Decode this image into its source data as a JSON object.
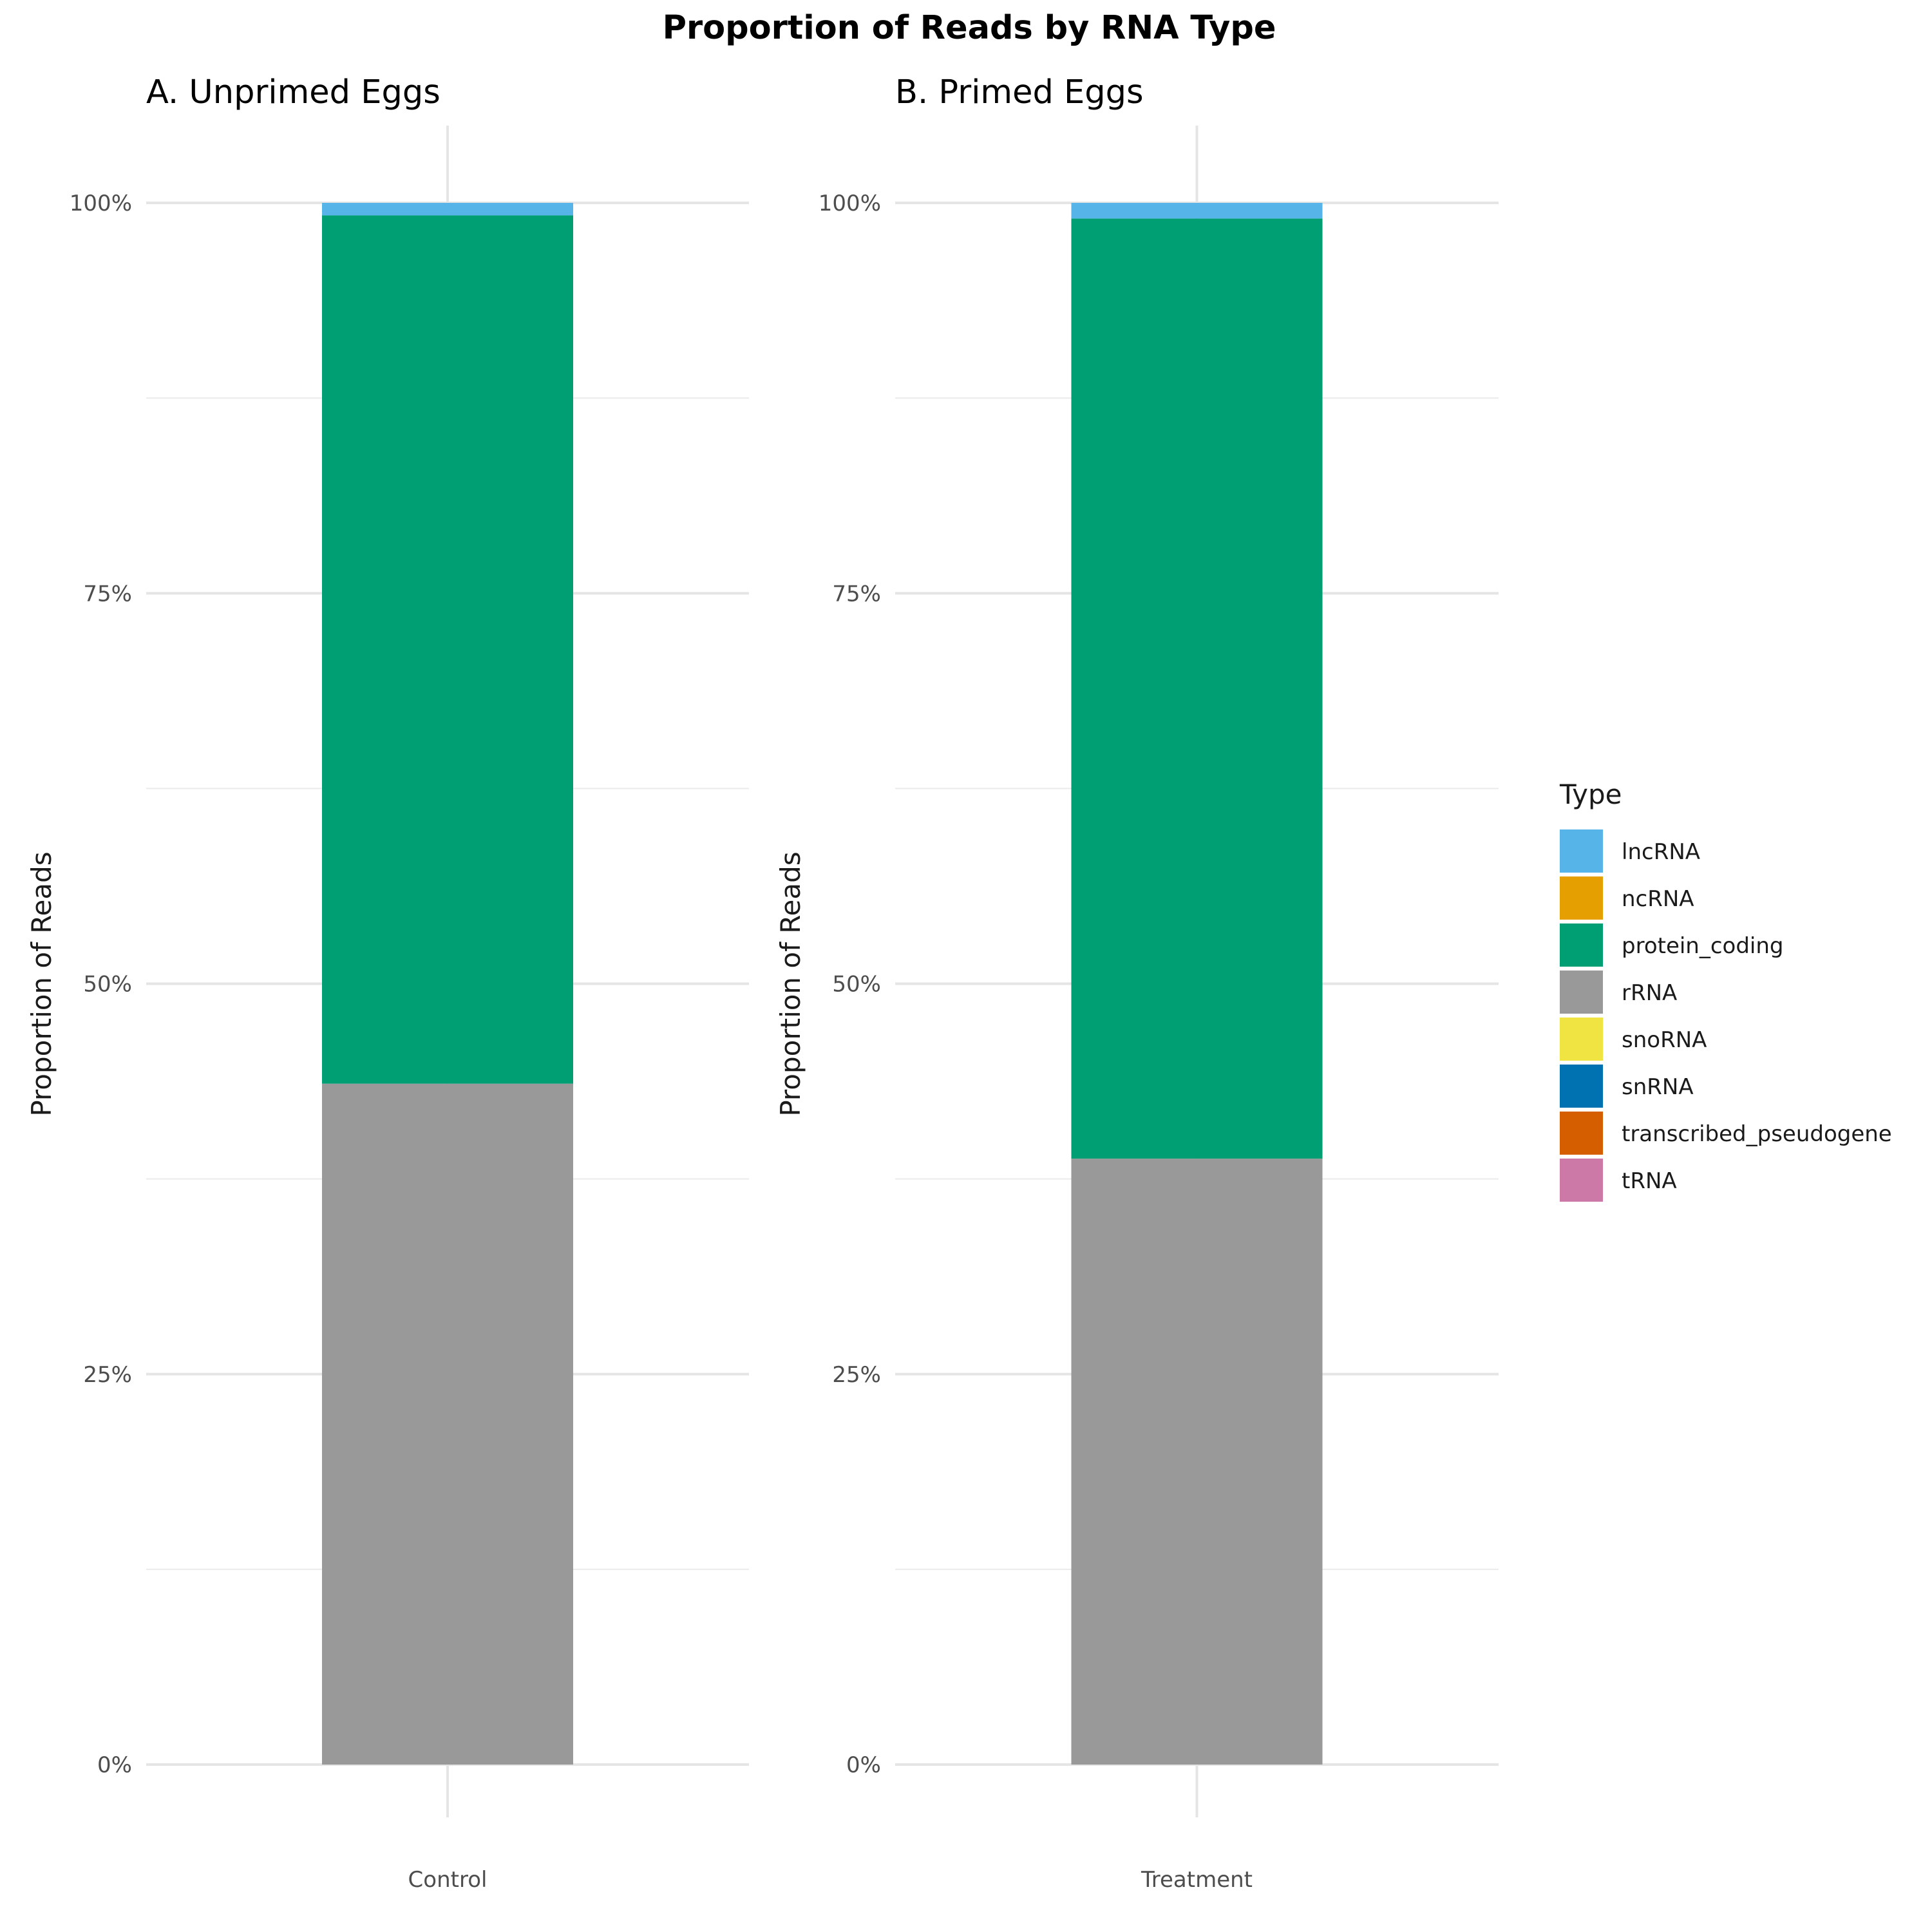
{
  "chart_data": {
    "type": "bar",
    "stacked": true,
    "title": "Proportion of Reads by RNA Type",
    "y_tick_labels": [
      "0%",
      "25%",
      "50%",
      "75%",
      "100%"
    ],
    "ylim": [
      0,
      1
    ],
    "grid": true,
    "legend": {
      "title": "Type",
      "position": "right",
      "entries": [
        {
          "label": "lncRNA",
          "color": "#56B4E9"
        },
        {
          "label": "ncRNA",
          "color": "#E69F00"
        },
        {
          "label": "protein_coding",
          "color": "#009E73"
        },
        {
          "label": "rRNA",
          "color": "#999999"
        },
        {
          "label": "snoRNA",
          "color": "#F0E442"
        },
        {
          "label": "snRNA",
          "color": "#0072B2"
        },
        {
          "label": "transcribed_pseudogene",
          "color": "#D55E00"
        },
        {
          "label": "tRNA",
          "color": "#CC79A7"
        }
      ]
    },
    "panels": [
      {
        "title": "A. Unprimed Eggs",
        "ylabel": "Proportion of Reads",
        "categories": [
          "Control"
        ],
        "series": [
          {
            "name": "rRNA",
            "values": [
              0.436
            ]
          },
          {
            "name": "protein_coding",
            "values": [
              0.556
            ]
          },
          {
            "name": "lncRNA",
            "values": [
              0.008
            ]
          }
        ]
      },
      {
        "title": "B. Primed Eggs",
        "ylabel": "Proportion of Reads",
        "categories": [
          "Treatment"
        ],
        "series": [
          {
            "name": "rRNA",
            "values": [
              0.388
            ]
          },
          {
            "name": "protein_coding",
            "values": [
              0.602
            ]
          },
          {
            "name": "lncRNA",
            "values": [
              0.01
            ]
          }
        ]
      }
    ]
  }
}
